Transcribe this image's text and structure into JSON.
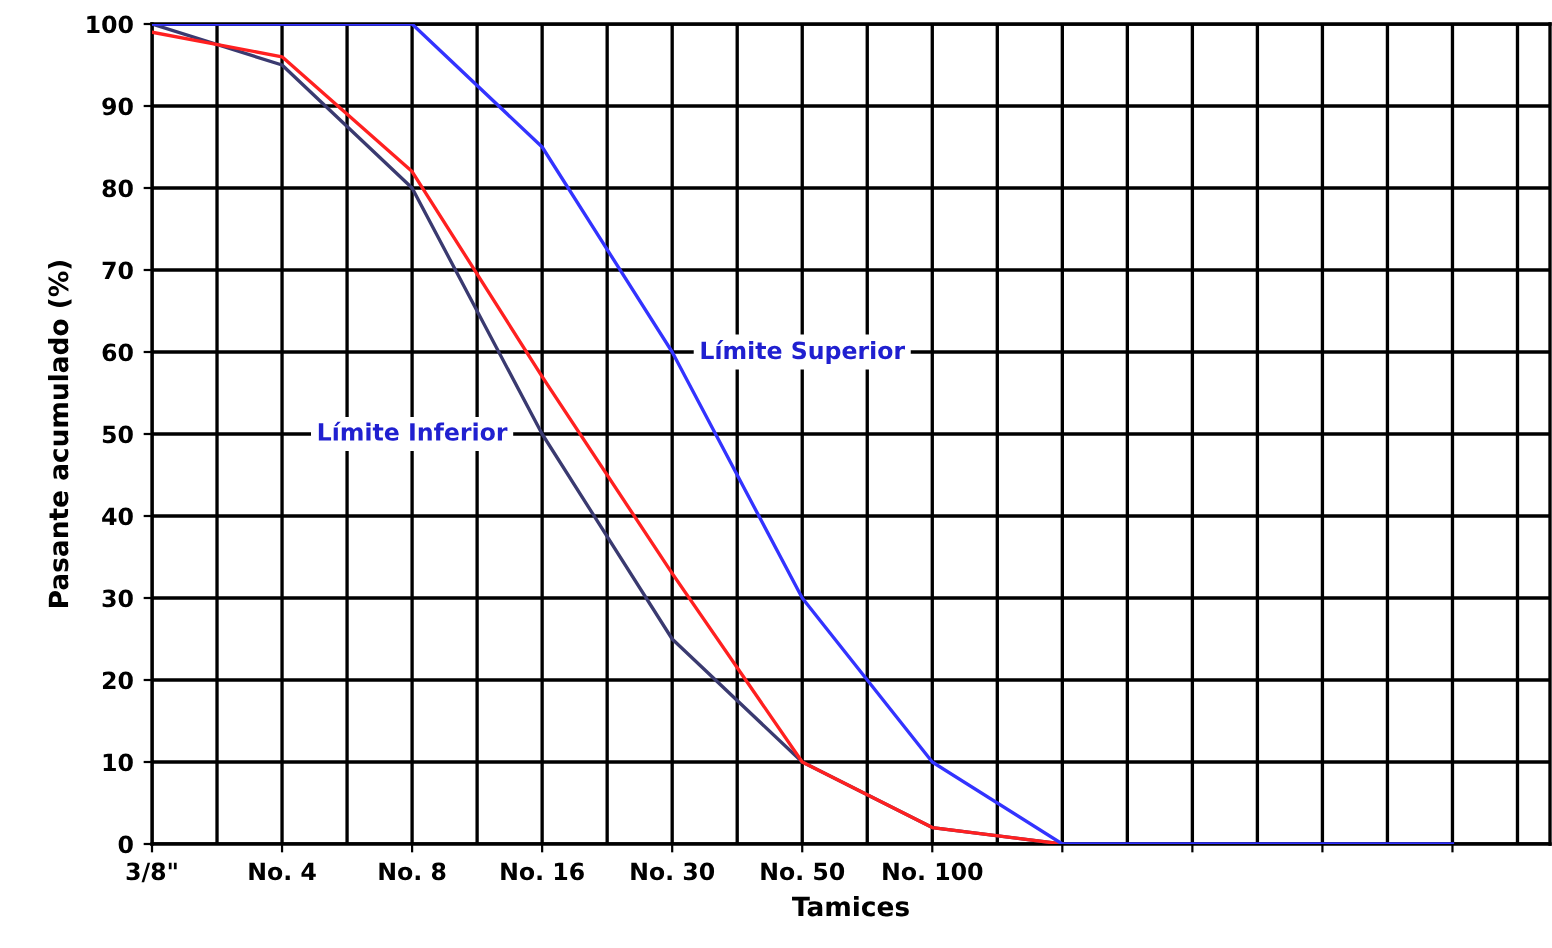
{
  "chart_data": {
    "type": "line",
    "xlabel": "Tamices",
    "ylabel": "Pasante acumulado (%)",
    "categories": [
      "3/8\"",
      "No. 4",
      "No. 8",
      "No. 16",
      "No. 30",
      "No. 50",
      "No. 100",
      null,
      null,
      null,
      null
    ],
    "series": [
      {
        "name": "Límite Inferior",
        "color": "#3a3a70",
        "values": [
          100,
          95,
          80,
          50,
          25,
          10,
          2,
          0,
          null,
          null,
          null
        ]
      },
      {
        "color": "#ff2020",
        "values": [
          99,
          96,
          82,
          57,
          33,
          10,
          2,
          0,
          null,
          null,
          null
        ]
      },
      {
        "name": "Límite Superior",
        "color": "#3333ff",
        "values": [
          100,
          100,
          100,
          85,
          60,
          30,
          10,
          0,
          0,
          0,
          0
        ]
      }
    ],
    "ylim": [
      0,
      100
    ],
    "yticks": [
      0,
      10,
      20,
      30,
      40,
      50,
      60,
      70,
      80,
      90,
      100
    ],
    "grid": true,
    "legend": false,
    "marker": "none",
    "line_style": "solid"
  }
}
